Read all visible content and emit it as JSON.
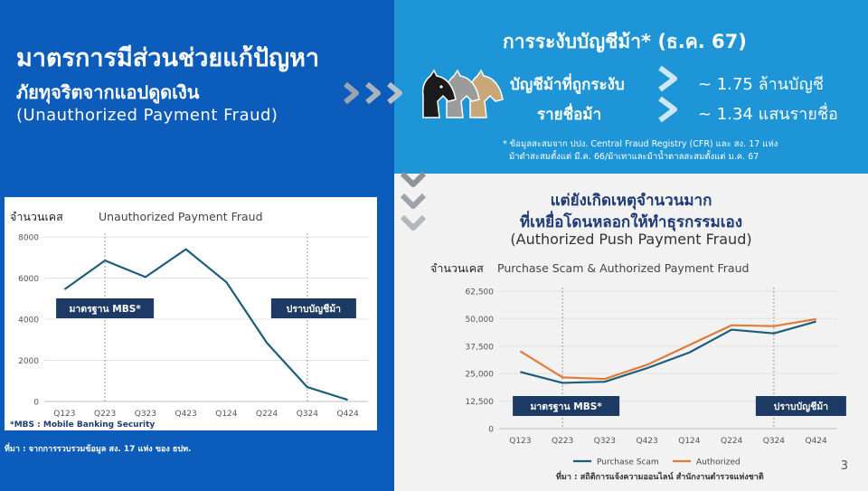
{
  "left": {
    "title_line1": "มาตรการมีส่วนช่วยแก้ปัญหา",
    "title_line2": "ภัยทุจริตจากแอปดูดเงิน",
    "title_en": "(Unauthorized Payment Fraud)",
    "source": "ที่มา : จากการรวบรวมข้อมูล สง. 17 แห่ง ของ ธปท.",
    "footnote": "*MBS : Mobile Banking Security"
  },
  "right_top": {
    "title": "การระงับบัญชีม้า* (ธ.ค. 67)",
    "row1_label": "บัญชีม้าที่ถูกระงับ",
    "row1_value": "~ 1.75 ล้านบัญชี",
    "row2_label": "รายชื่อม้า",
    "row2_value": "~ 1.34 แสนรายชื่อ",
    "note_line1": "* ข้อมูลสะสมจาก ปปง. Central Fraud Registry (CFR) และ สง. 17 แห่ง",
    "note_line2": "ม้าดำสะสมตั้งแต่ มี.ค. 66/ม้าเทาและม้าน้ำตาลสะสมตั้งแต่ ม.ค. 67"
  },
  "right_bottom": {
    "title_line1": "แต่ยังเกิดเหตุจำนวนมาก",
    "title_line2": "ที่เหยื่อโดนหลอกให้ทำธุรกรรมเอง",
    "title_en": "(Authorized Push Payment Fraud)",
    "source": "ที่มา : สถิติการแจ้งความออนไลน์ สำนักงานตำรวจแห่งชาติ"
  },
  "page_number": "3",
  "colors": {
    "left_bg": "#0b5cbb",
    "right_top_bg": "#1d95d6",
    "line_teal": "#1b5e7b",
    "line_orange": "#e07b39",
    "callout_bg": "#1c3a63"
  },
  "chart_data": [
    {
      "type": "line",
      "title": "Unauthorized Payment Fraud",
      "ylabel": "จำนวนเคส",
      "categories": [
        "Q123",
        "Q223",
        "Q323",
        "Q423",
        "Q124",
        "Q224",
        "Q324",
        "Q424"
      ],
      "series": [
        {
          "values": [
            5450,
            6850,
            6050,
            7400,
            5800,
            2850,
            700,
            80
          ]
        }
      ],
      "ylim": [
        0,
        8000
      ],
      "yticks": [
        "0",
        "2000",
        "4000",
        "6000",
        "8000"
      ],
      "grid": true,
      "markers": [
        {
          "category": "Q223",
          "label": "มาตรฐาน MBS*"
        },
        {
          "category": "Q324",
          "label": "ปราบบัญชีม้า"
        }
      ]
    },
    {
      "type": "line",
      "title": "Purchase Scam & Authorized Payment Fraud",
      "ylabel": "จำนวนเคส",
      "categories": [
        "Q123",
        "Q223",
        "Q323",
        "Q423",
        "Q124",
        "Q224",
        "Q324",
        "Q424"
      ],
      "series": [
        {
          "name": "Purchase Scam",
          "values": [
            25800,
            20800,
            21300,
            27500,
            34600,
            45000,
            43300,
            48700
          ]
        },
        {
          "name": "Authorized",
          "values": [
            35200,
            23300,
            22600,
            29000,
            38000,
            47000,
            46600,
            49800
          ]
        }
      ],
      "ylim": [
        0,
        62500
      ],
      "yticks": [
        "0",
        "12,500",
        "25,000",
        "37,500",
        "50,000",
        "62,500"
      ],
      "grid": true,
      "legend": "bottom",
      "markers": [
        {
          "category": "Q223",
          "label": "มาตรฐาน MBS*"
        },
        {
          "category": "Q324",
          "label": "ปราบบัญชีม้า"
        }
      ]
    }
  ]
}
